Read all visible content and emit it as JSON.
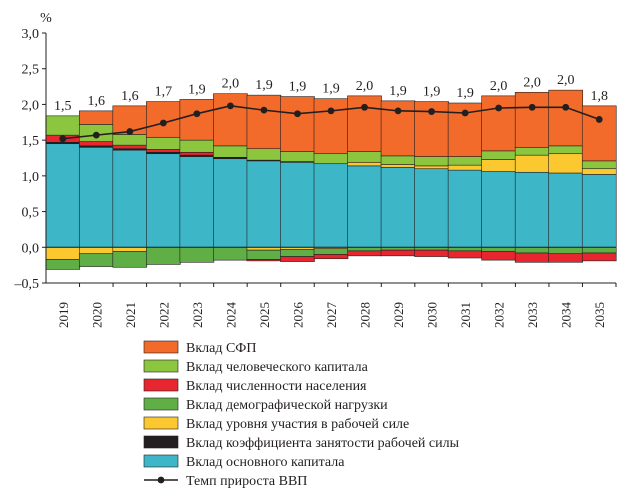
{
  "chart_data": {
    "type": "bar",
    "stacked": true,
    "ylabel": "%",
    "ylim": [
      -0.5,
      3.0
    ],
    "yticks": [
      "3,0",
      "2,5",
      "2,0",
      "1,5",
      "1,0",
      "0,5",
      "0,0",
      "–0,5"
    ],
    "yticks_values": [
      3.0,
      2.5,
      2.0,
      1.5,
      1.0,
      0.5,
      0.0,
      -0.5
    ],
    "grid": false,
    "legend_position": "bottom",
    "categories": [
      "2019",
      "2020",
      "2021",
      "2022",
      "2023",
      "2024",
      "2025",
      "2026",
      "2027",
      "2028",
      "2029",
      "2030",
      "2031",
      "2032",
      "2033",
      "2034",
      "2035"
    ],
    "data_labels": [
      "1,5",
      "1,6",
      "1,6",
      "1,7",
      "1,9",
      "2,0",
      "1,9",
      "1,9",
      "1,9",
      "2,0",
      "1,9",
      "1,9",
      "1,9",
      "2,0",
      "2,0",
      "2,0",
      "1,8"
    ],
    "series": [
      {
        "name": "Вклад основного капитала",
        "color": "#3db6c8",
        "values": [
          1.45,
          1.4,
          1.36,
          1.31,
          1.27,
          1.24,
          1.21,
          1.19,
          1.17,
          1.14,
          1.12,
          1.1,
          1.08,
          1.06,
          1.05,
          1.04,
          1.02
        ]
      },
      {
        "name": "Вклад коэффициента занятости рабочей силы",
        "color": "#231f20",
        "values": [
          0.02,
          0.02,
          0.02,
          0.02,
          0.02,
          0.02,
          0.01,
          0.01,
          0.0,
          0.0,
          0.0,
          0.0,
          0.0,
          0.0,
          0.0,
          0.0,
          0.0
        ]
      },
      {
        "name": "Вклад уровня участия в рабочей силе",
        "color": "#fbc82f",
        "values": [
          -0.17,
          -0.09,
          -0.06,
          0.0,
          0.0,
          0.0,
          -0.04,
          -0.03,
          -0.02,
          0.05,
          0.04,
          0.04,
          0.07,
          0.17,
          0.24,
          0.27,
          0.08
        ]
      },
      {
        "name": "Вклад демографической нагрузки",
        "color": "#5fae46",
        "values": [
          -0.14,
          -0.18,
          -0.22,
          -0.24,
          -0.21,
          -0.18,
          -0.13,
          -0.1,
          -0.08,
          -0.05,
          -0.04,
          -0.04,
          -0.05,
          -0.06,
          -0.08,
          -0.09,
          -0.08
        ]
      },
      {
        "name": "Вклад численности населения",
        "color": "#e8262f",
        "values": [
          0.1,
          0.06,
          0.05,
          0.04,
          0.04,
          0.0,
          -0.02,
          -0.07,
          -0.06,
          -0.07,
          -0.08,
          -0.09,
          -0.1,
          -0.12,
          -0.13,
          -0.12,
          -0.11
        ]
      },
      {
        "name": "Вклад человеческого капитала",
        "color": "#8cc63f",
        "values": [
          0.27,
          0.24,
          0.15,
          0.17,
          0.17,
          0.16,
          0.16,
          0.14,
          0.14,
          0.15,
          0.12,
          0.13,
          0.12,
          0.12,
          0.11,
          0.11,
          0.11
        ]
      },
      {
        "name": "Вклад СФП",
        "color": "#f26b2a",
        "values": [
          0.0,
          0.19,
          0.4,
          0.5,
          0.57,
          0.73,
          0.75,
          0.77,
          0.77,
          0.78,
          0.77,
          0.77,
          0.75,
          0.77,
          0.77,
          0.78,
          0.77
        ]
      }
    ],
    "line": {
      "name": "Темп прироста ВВП",
      "color": "#231f20",
      "values": [
        1.52,
        1.57,
        1.62,
        1.74,
        1.87,
        1.98,
        1.92,
        1.87,
        1.91,
        1.96,
        1.91,
        1.9,
        1.88,
        1.95,
        1.96,
        1.96,
        1.79
      ]
    },
    "legend": [
      {
        "label": "Вклад СФП",
        "color": "#f26b2a",
        "kind": "box"
      },
      {
        "label": "Вклад человеческого капитала",
        "color": "#8cc63f",
        "kind": "box"
      },
      {
        "label": "Вклад численности населения",
        "color": "#e8262f",
        "kind": "box"
      },
      {
        "label": "Вклад демографической нагрузки",
        "color": "#5fae46",
        "kind": "box"
      },
      {
        "label": "Вклад уровня участия в рабочей силе",
        "color": "#fbc82f",
        "kind": "box"
      },
      {
        "label": "Вклад коэффициента занятости рабочей силы",
        "color": "#231f20",
        "kind": "box"
      },
      {
        "label": "Вклад основного капитала",
        "color": "#3db6c8",
        "kind": "box"
      },
      {
        "label": "Темп прироста ВВП",
        "color": "#231f20",
        "kind": "line"
      }
    ]
  }
}
